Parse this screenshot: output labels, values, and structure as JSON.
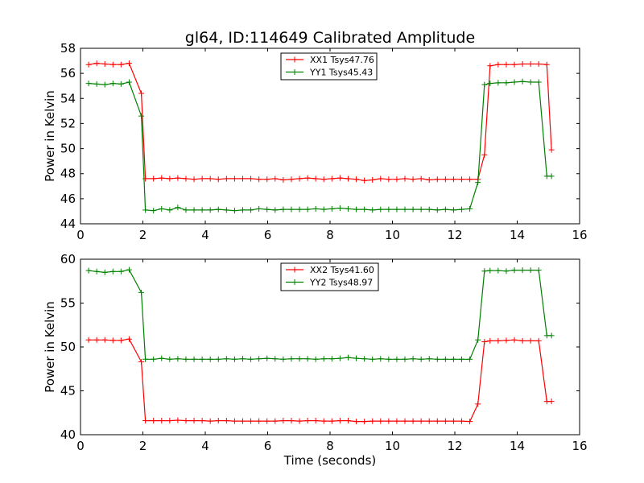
{
  "title": "gl64, ID:114649 Calibrated Amplitude",
  "colors": {
    "red": "#ff0000",
    "green": "#008000"
  },
  "chart_data": [
    {
      "type": "line",
      "xlabel": "",
      "ylabel": "Power in Kelvin",
      "xlim": [
        0,
        16
      ],
      "ylim": [
        44,
        58
      ],
      "xticks": [
        0,
        2,
        4,
        6,
        8,
        10,
        12,
        14,
        16
      ],
      "yticks": [
        44,
        46,
        48,
        50,
        52,
        54,
        56,
        58
      ],
      "legend": "top-center",
      "grid": false,
      "x": [
        0.26,
        0.52,
        0.78,
        1.04,
        1.3,
        1.56,
        1.95,
        2.08,
        2.34,
        2.6,
        2.86,
        3.12,
        3.38,
        3.64,
        3.9,
        4.16,
        4.42,
        4.68,
        4.94,
        5.2,
        5.46,
        5.72,
        5.98,
        6.24,
        6.5,
        6.76,
        7.02,
        7.28,
        7.54,
        7.8,
        8.06,
        8.32,
        8.58,
        8.84,
        9.1,
        9.36,
        9.62,
        9.88,
        10.14,
        10.4,
        10.66,
        10.92,
        11.18,
        11.44,
        11.7,
        11.96,
        12.22,
        12.48,
        12.74,
        12.95,
        13.13,
        13.39,
        13.65,
        13.91,
        14.17,
        14.43,
        14.69,
        14.95,
        15.1
      ],
      "series": [
        {
          "name": "XX1 Tsys47.76",
          "color": "#ff0000",
          "values": [
            56.7,
            56.8,
            56.75,
            56.7,
            56.7,
            56.8,
            54.4,
            47.6,
            47.6,
            47.65,
            47.6,
            47.65,
            47.6,
            47.55,
            47.6,
            47.6,
            47.55,
            47.6,
            47.6,
            47.6,
            47.6,
            47.55,
            47.55,
            47.6,
            47.5,
            47.55,
            47.6,
            47.65,
            47.6,
            47.55,
            47.6,
            47.65,
            47.6,
            47.55,
            47.45,
            47.5,
            47.6,
            47.55,
            47.55,
            47.6,
            47.55,
            47.6,
            47.5,
            47.55,
            47.55,
            47.55,
            47.55,
            47.55,
            47.55,
            49.5,
            56.6,
            56.7,
            56.7,
            56.7,
            56.75,
            56.75,
            56.75,
            56.7,
            49.9
          ]
        },
        {
          "name": "YY1 Tsys45.43",
          "color": "#008000",
          "values": [
            55.2,
            55.15,
            55.1,
            55.2,
            55.15,
            55.3,
            52.6,
            45.1,
            45.05,
            45.2,
            45.1,
            45.3,
            45.1,
            45.1,
            45.1,
            45.1,
            45.15,
            45.1,
            45.05,
            45.1,
            45.1,
            45.2,
            45.15,
            45.1,
            45.15,
            45.15,
            45.15,
            45.15,
            45.2,
            45.15,
            45.2,
            45.25,
            45.2,
            45.15,
            45.15,
            45.1,
            45.15,
            45.15,
            45.15,
            45.15,
            45.15,
            45.15,
            45.15,
            45.1,
            45.15,
            45.1,
            45.15,
            45.2,
            47.3,
            55.1,
            55.2,
            55.25,
            55.25,
            55.3,
            55.35,
            55.3,
            55.3,
            47.8,
            47.8
          ]
        }
      ]
    },
    {
      "type": "line",
      "xlabel": "Time (seconds)",
      "ylabel": "Power in Kelvin",
      "xlim": [
        0,
        16
      ],
      "ylim": [
        40,
        60
      ],
      "xticks": [
        0,
        2,
        4,
        6,
        8,
        10,
        12,
        14,
        16
      ],
      "yticks": [
        40,
        45,
        50,
        55,
        60
      ],
      "legend": "top-center",
      "grid": false,
      "x": [
        0.26,
        0.52,
        0.78,
        1.04,
        1.3,
        1.56,
        1.95,
        2.08,
        2.34,
        2.6,
        2.86,
        3.12,
        3.38,
        3.64,
        3.9,
        4.16,
        4.42,
        4.68,
        4.94,
        5.2,
        5.46,
        5.72,
        5.98,
        6.24,
        6.5,
        6.76,
        7.02,
        7.28,
        7.54,
        7.8,
        8.06,
        8.32,
        8.58,
        8.84,
        9.1,
        9.36,
        9.62,
        9.88,
        10.14,
        10.4,
        10.66,
        10.92,
        11.18,
        11.44,
        11.7,
        11.96,
        12.22,
        12.48,
        12.74,
        12.95,
        13.13,
        13.39,
        13.65,
        13.91,
        14.17,
        14.43,
        14.69,
        14.95,
        15.1
      ],
      "series": [
        {
          "name": "XX2 Tsys41.60",
          "color": "#ff0000",
          "values": [
            50.8,
            50.8,
            50.8,
            50.75,
            50.75,
            50.9,
            48.3,
            41.6,
            41.6,
            41.6,
            41.6,
            41.65,
            41.6,
            41.6,
            41.6,
            41.55,
            41.6,
            41.6,
            41.55,
            41.55,
            41.55,
            41.55,
            41.55,
            41.55,
            41.6,
            41.6,
            41.55,
            41.6,
            41.6,
            41.55,
            41.55,
            41.6,
            41.6,
            41.5,
            41.5,
            41.55,
            41.55,
            41.55,
            41.55,
            41.55,
            41.55,
            41.55,
            41.55,
            41.55,
            41.55,
            41.55,
            41.55,
            41.5,
            43.5,
            50.6,
            50.7,
            50.7,
            50.75,
            50.8,
            50.7,
            50.7,
            50.7,
            43.8,
            43.8
          ]
        },
        {
          "name": "YY2 Tsys48.97",
          "color": "#008000",
          "values": [
            58.7,
            58.6,
            58.5,
            58.6,
            58.6,
            58.8,
            56.2,
            48.6,
            48.6,
            48.7,
            48.6,
            48.65,
            48.6,
            48.6,
            48.6,
            48.6,
            48.6,
            48.65,
            48.6,
            48.65,
            48.6,
            48.65,
            48.7,
            48.65,
            48.6,
            48.65,
            48.65,
            48.65,
            48.6,
            48.65,
            48.65,
            48.7,
            48.8,
            48.7,
            48.65,
            48.6,
            48.65,
            48.6,
            48.6,
            48.6,
            48.65,
            48.6,
            48.65,
            48.6,
            48.6,
            48.6,
            48.6,
            48.6,
            50.8,
            58.65,
            58.7,
            58.7,
            58.65,
            58.75,
            58.75,
            58.75,
            58.75,
            51.3,
            51.3
          ]
        }
      ]
    }
  ]
}
